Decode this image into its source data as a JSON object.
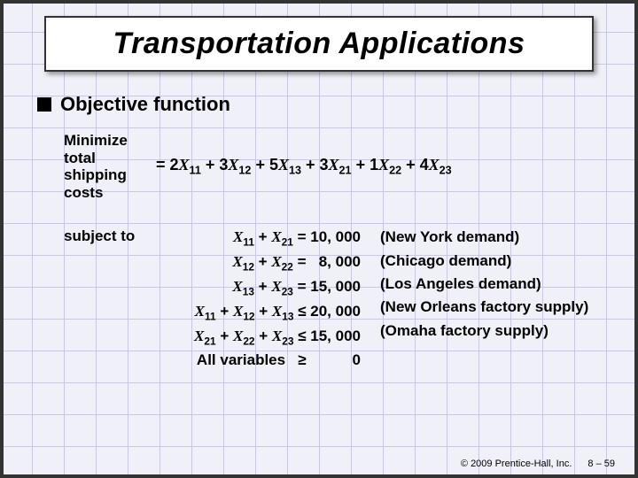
{
  "title": "Transportation Applications",
  "bullet": "Objective function",
  "objective": {
    "label_l1": "Minimize",
    "label_l2": "total",
    "label_l3": "shipping",
    "label_l4": "costs",
    "expr_prefix": "= ",
    "c11": "2",
    "c12": "3",
    "c13": "5",
    "c21": "3",
    "c22": "1",
    "c23": "4"
  },
  "subject_to": "subject to",
  "constraints": {
    "r1_lhs_html": "<span class='xi'>X</span><sub>11</sub> + <span class='xi'>X</span><sub>21</sub>  = 10, 000",
    "r2_lhs_html": "<span class='xi'>X</span><sub>12</sub> + <span class='xi'>X</span><sub>22</sub>  =&nbsp;&nbsp; 8, 000",
    "r3_lhs_html": "<span class='xi'>X</span><sub>13</sub> + <span class='xi'>X</span><sub>23</sub>  = 15, 000",
    "r4_lhs_html": "<span class='xi'>X</span><sub>11</sub> + <span class='xi'>X</span><sub>12</sub> + <span class='xi'>X</span><sub>13</sub> ≤ 20, 000",
    "r5_lhs_html": "<span class='xi'>X</span><sub>21</sub> + <span class='xi'>X</span><sub>22</sub> + <span class='xi'>X</span><sub>23</sub> ≤ 15, 000",
    "r6_lhs_html": "All variables&nbsp;&nbsp; ≥&nbsp;&nbsp;&nbsp;&nbsp;&nbsp;&nbsp;&nbsp;&nbsp;&nbsp;&nbsp; 0",
    "r1_desc": "(New York demand)",
    "r2_desc": "(Chicago demand)",
    "r3_desc": "(Los Angeles demand)",
    "r4_desc": "(New Orleans factory supply)",
    "r5_desc": "(Omaha factory supply)",
    "r6_desc": ""
  },
  "footer": {
    "copyright": "© 2009 Prentice-Hall, Inc.",
    "page": "8 – 59"
  }
}
